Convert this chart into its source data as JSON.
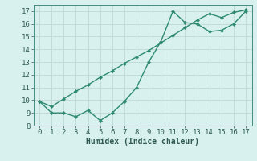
{
  "line1_x": [
    0,
    1,
    2,
    3,
    4,
    5,
    6,
    7,
    8,
    9,
    10,
    11,
    12,
    13,
    14,
    15,
    16,
    17
  ],
  "line1_y": [
    9.9,
    9.0,
    9.0,
    8.7,
    9.2,
    8.4,
    9.0,
    9.9,
    11.0,
    13.0,
    14.6,
    17.0,
    16.1,
    16.0,
    15.4,
    15.5,
    16.0,
    17.0
  ],
  "line2_x": [
    0,
    1,
    2,
    3,
    4,
    5,
    6,
    7,
    8,
    9,
    10,
    11,
    12,
    13,
    14,
    15,
    16,
    17
  ],
  "line2_y": [
    9.9,
    9.5,
    10.1,
    10.7,
    11.2,
    11.8,
    12.3,
    12.9,
    13.4,
    13.9,
    14.5,
    15.1,
    15.7,
    16.3,
    16.8,
    16.5,
    16.9,
    17.1
  ],
  "line_color": "#2e8b70",
  "bg_color": "#d8f0ee",
  "grid_color": "#c0dbd8",
  "xlabel": "Humidex (Indice chaleur)",
  "ylim": [
    8,
    17.5
  ],
  "xlim": [
    -0.5,
    17.5
  ],
  "yticks": [
    8,
    9,
    10,
    11,
    12,
    13,
    14,
    15,
    16,
    17
  ],
  "xticks": [
    0,
    1,
    2,
    3,
    4,
    5,
    6,
    7,
    8,
    9,
    10,
    11,
    12,
    13,
    14,
    15,
    16,
    17
  ],
  "marker_size": 2.2,
  "line_width": 1.0,
  "xlabel_fontsize": 7,
  "tick_fontsize": 6.5
}
